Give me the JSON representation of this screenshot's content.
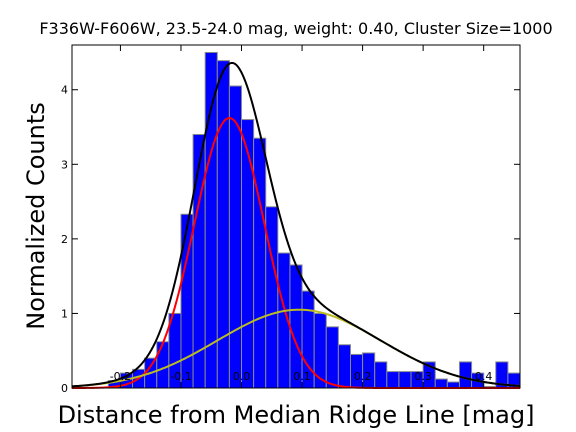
{
  "chart_data": {
    "type": "bar",
    "title": "F336W-F606W, 23.5-24.0 mag, weight: 0.40, Cluster Size=1000",
    "xlabel": "Distance from Median Ridge Line [mag]",
    "ylabel": "Normalized Counts",
    "xlim": [
      -0.28,
      0.46
    ],
    "ylim": [
      0,
      4.6
    ],
    "x_ticks": [
      "-0.2",
      "-0.1",
      "0.0",
      "0.1",
      "0.2",
      "0.3",
      "0.4"
    ],
    "x_tick_values": [
      -0.2,
      -0.1,
      0.0,
      0.1,
      0.2,
      0.3,
      0.4
    ],
    "y_ticks": [
      "0",
      "1",
      "2",
      "3",
      "4"
    ],
    "y_tick_values": [
      0,
      1,
      2,
      3,
      4
    ],
    "bin_width": 0.02,
    "bins": [
      {
        "x0": -0.22,
        "count": 0.1
      },
      {
        "x0": -0.2,
        "count": 0.2
      },
      {
        "x0": -0.18,
        "count": 0.25
      },
      {
        "x0": -0.16,
        "count": 0.4
      },
      {
        "x0": -0.14,
        "count": 0.62
      },
      {
        "x0": -0.12,
        "count": 1.0
      },
      {
        "x0": -0.1,
        "count": 2.33
      },
      {
        "x0": -0.08,
        "count": 3.4
      },
      {
        "x0": -0.06,
        "count": 4.5
      },
      {
        "x0": -0.04,
        "count": 4.39
      },
      {
        "x0": -0.02,
        "count": 4.05
      },
      {
        "x0": 0.0,
        "count": 3.6
      },
      {
        "x0": 0.02,
        "count": 3.35
      },
      {
        "x0": 0.04,
        "count": 2.43
      },
      {
        "x0": 0.06,
        "count": 1.81
      },
      {
        "x0": 0.08,
        "count": 1.65
      },
      {
        "x0": 0.1,
        "count": 1.3
      },
      {
        "x0": 0.12,
        "count": 1.0
      },
      {
        "x0": 0.14,
        "count": 0.82
      },
      {
        "x0": 0.16,
        "count": 0.58
      },
      {
        "x0": 0.18,
        "count": 0.45
      },
      {
        "x0": 0.2,
        "count": 0.47
      },
      {
        "x0": 0.22,
        "count": 0.35
      },
      {
        "x0": 0.24,
        "count": 0.22
      },
      {
        "x0": 0.26,
        "count": 0.22
      },
      {
        "x0": 0.28,
        "count": 0.22
      },
      {
        "x0": 0.3,
        "count": 0.35
      },
      {
        "x0": 0.32,
        "count": 0.12
      },
      {
        "x0": 0.34,
        "count": 0.08
      },
      {
        "x0": 0.36,
        "count": 0.35
      },
      {
        "x0": 0.38,
        "count": 0.2
      },
      {
        "x0": 0.4,
        "count": 0.02
      },
      {
        "x0": 0.42,
        "count": 0.35
      },
      {
        "x0": 0.44,
        "count": 0.2
      }
    ],
    "curves": [
      {
        "color": "#ff0000",
        "model": "gaussian",
        "amplitude": 3.62,
        "center": -0.02,
        "sigma": 0.058
      },
      {
        "color": "#bbbb22",
        "model": "gaussian",
        "amplitude": 1.05,
        "center": 0.095,
        "sigma": 0.135
      },
      {
        "color": "#000000",
        "model": "sum",
        "components": [
          0,
          1
        ]
      }
    ],
    "colors": {
      "bar_fill": "#0000ff",
      "bar_edge": "#8a8a8a"
    },
    "grid": false
  }
}
